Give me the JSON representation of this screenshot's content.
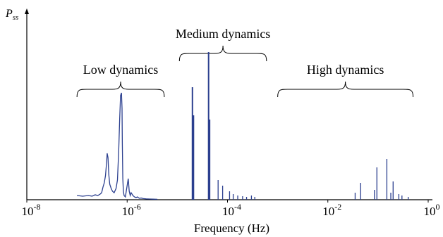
{
  "chart_data": {
    "type": "line",
    "title": "",
    "ylabel": "P",
    "ylabel_sub": "ss",
    "xlabel": "Frequency (Hz)",
    "xscale": "log",
    "xlim": [
      1e-08,
      1
    ],
    "ylim": [
      0,
      1
    ],
    "y_ticks_shown": false,
    "grid": false,
    "x_tick_labels": [
      {
        "value": 1e-08,
        "base": "10",
        "exp": "-8"
      },
      {
        "value": 1e-06,
        "base": "10",
        "exp": "-6"
      },
      {
        "value": 0.0001,
        "base": "10",
        "exp": "-4"
      },
      {
        "value": 0.01,
        "base": "10",
        "exp": "-2"
      },
      {
        "value": 1,
        "base": "10",
        "exp": "0"
      }
    ],
    "series_color": "#2b3f8f",
    "low_curve": {
      "x": [
        1e-07,
        1.3e-07,
        1.7e-07,
        2e-07,
        2.3e-07,
        2.6e-07,
        2.9e-07,
        3.1e-07,
        3.3e-07,
        3.5e-07,
        3.7e-07,
        3.9e-07,
        4e-07,
        4.15e-07,
        4.3e-07,
        4.5e-07,
        4.8e-07,
        5.1e-07,
        5.5e-07,
        6e-07,
        6.4e-07,
        6.8e-07,
        7.1e-07,
        7.4e-07,
        7.7e-07,
        7.9e-07,
        8e-07,
        8.2e-07,
        8.4e-07,
        8.7e-07,
        9.2e-07,
        9.8e-07,
        1.05e-06,
        1.1e-06,
        1.15e-06,
        1.2e-06,
        1.3e-06,
        1.4e-06,
        1.5e-06,
        1.6e-06,
        1.75e-06,
        1.9e-06,
        2.1e-06,
        2.4e-06,
        2.8e-06,
        3.3e-06,
        4e-06
      ],
      "y": [
        0.03,
        0.025,
        0.03,
        0.025,
        0.035,
        0.03,
        0.04,
        0.05,
        0.09,
        0.12,
        0.17,
        0.27,
        0.33,
        0.3,
        0.18,
        0.11,
        0.08,
        0.06,
        0.05,
        0.08,
        0.14,
        0.35,
        0.58,
        0.74,
        0.76,
        0.65,
        0.4,
        0.15,
        0.06,
        0.03,
        0.02,
        0.08,
        0.15,
        0.06,
        0.03,
        0.05,
        0.03,
        0.02,
        0.015,
        0.02,
        0.01,
        0.012,
        0.008,
        0.006,
        0.005,
        0.004,
        0.003
      ]
    },
    "spikes": {
      "x": [
        2e-05,
        2.1e-05,
        4.2e-05,
        4.4e-05,
        6.5e-05,
        8e-05,
        0.00011,
        0.00013,
        0.00016,
        0.0002,
        0.00024,
        0.0003,
        0.00035,
        0.035,
        0.045,
        0.085,
        0.095,
        0.15,
        0.18,
        0.2,
        0.26,
        0.3,
        0.4
      ],
      "y": [
        0.8,
        0.6,
        1.05,
        0.57,
        0.14,
        0.1,
        0.06,
        0.04,
        0.03,
        0.025,
        0.02,
        0.03,
        0.02,
        0.05,
        0.12,
        0.07,
        0.23,
        0.29,
        0.05,
        0.13,
        0.04,
        0.03,
        0.02
      ]
    },
    "annotations": [
      {
        "text": "Low dynamics",
        "x_from": 1e-07,
        "x_to": 5.5e-06,
        "level": "lower"
      },
      {
        "text": "Medium dynamics",
        "x_from": 1.1e-05,
        "x_to": 0.0006,
        "level": "upper"
      },
      {
        "text": "High dynamics",
        "x_from": 0.001,
        "x_to": 0.5,
        "level": "lower"
      }
    ]
  }
}
